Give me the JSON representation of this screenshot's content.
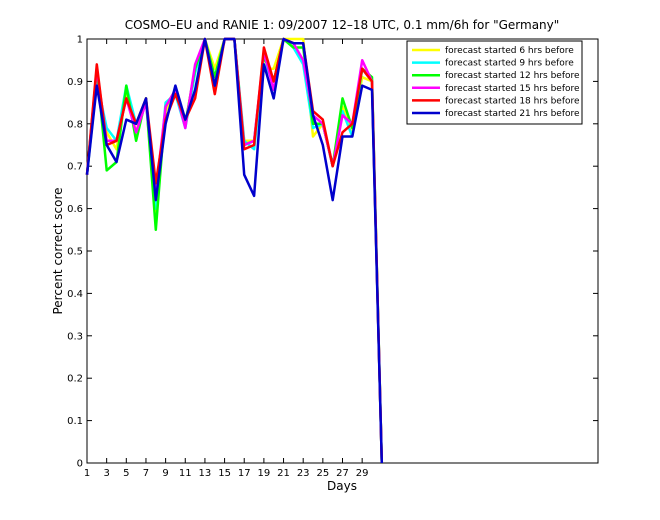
{
  "chart_data": {
    "type": "line",
    "title": "COSMO–EU and RANIE 1: 09/2007 12–18 UTC, 0.1 mm/6h for \"Germany\"",
    "xlabel": "Days",
    "ylabel": "Percent correct score",
    "xlim": [
      1,
      53
    ],
    "ylim": [
      0,
      1
    ],
    "x_ticks": [
      1,
      3,
      5,
      7,
      9,
      11,
      13,
      15,
      17,
      19,
      21,
      23,
      25,
      27,
      29
    ],
    "y_ticks": [
      0,
      0.1,
      0.2,
      0.3,
      0.4,
      0.5,
      0.6,
      0.7,
      0.8,
      0.9,
      1
    ],
    "y_tick_labels": [
      "0",
      "0.1",
      "0.2",
      "0.3",
      "0.4",
      "0.5",
      "0.6",
      "0.7",
      "0.8",
      "0.9",
      "1"
    ],
    "grid": false,
    "legend_position": "top-right",
    "x": [
      1,
      2,
      3,
      4,
      5,
      6,
      7,
      8,
      9,
      10,
      11,
      12,
      13,
      14,
      15,
      16,
      17,
      18,
      19,
      20,
      21,
      22,
      23,
      24,
      25,
      26,
      27,
      28,
      29,
      30,
      31
    ],
    "series": [
      {
        "name": "forecast started 6 hrs before",
        "color": "#ffff00",
        "values": [
          0.68,
          0.91,
          0.78,
          0.74,
          0.87,
          0.78,
          0.86,
          0.58,
          0.83,
          0.87,
          0.8,
          0.93,
          1.0,
          0.93,
          1.0,
          1.0,
          0.76,
          0.76,
          0.93,
          0.93,
          1.0,
          1.0,
          1.0,
          0.77,
          0.8,
          0.7,
          0.84,
          0.78,
          0.91,
          0.9,
          0.0
        ]
      },
      {
        "name": "forecast started 9 hrs before",
        "color": "#00ffff",
        "values": [
          0.68,
          0.9,
          0.79,
          0.76,
          0.89,
          0.8,
          0.85,
          0.6,
          0.85,
          0.87,
          0.79,
          0.92,
          1.0,
          0.91,
          1.0,
          1.0,
          0.76,
          0.74,
          0.94,
          0.9,
          1.0,
          0.98,
          0.94,
          0.79,
          0.8,
          0.7,
          0.83,
          0.77,
          0.93,
          0.9,
          0.0
        ]
      },
      {
        "name": "forecast started 12 hrs before",
        "color": "#00ff00",
        "values": [
          0.68,
          0.93,
          0.69,
          0.71,
          0.89,
          0.76,
          0.86,
          0.55,
          0.84,
          0.88,
          0.8,
          0.93,
          1.0,
          0.91,
          1.0,
          1.0,
          0.75,
          0.76,
          0.96,
          0.9,
          1.0,
          0.98,
          0.98,
          0.8,
          0.8,
          0.7,
          0.86,
          0.79,
          0.93,
          0.91,
          0.0
        ]
      },
      {
        "name": "forecast started 15 hrs before",
        "color": "#ff00ff",
        "values": [
          0.68,
          0.93,
          0.76,
          0.76,
          0.86,
          0.78,
          0.85,
          0.64,
          0.84,
          0.88,
          0.79,
          0.94,
          1.0,
          0.89,
          1.0,
          1.0,
          0.75,
          0.76,
          0.97,
          0.88,
          1.0,
          0.99,
          0.95,
          0.82,
          0.8,
          0.7,
          0.82,
          0.8,
          0.95,
          0.9,
          0.0
        ]
      },
      {
        "name": "forecast started 18 hrs before",
        "color": "#ff0000",
        "values": [
          0.68,
          0.94,
          0.75,
          0.76,
          0.86,
          0.8,
          0.86,
          0.66,
          0.81,
          0.87,
          0.81,
          0.86,
          1.0,
          0.87,
          1.0,
          1.0,
          0.74,
          0.75,
          0.98,
          0.9,
          1.0,
          0.99,
          0.99,
          0.83,
          0.81,
          0.7,
          0.78,
          0.8,
          0.93,
          0.9,
          0.0
        ]
      },
      {
        "name": "forecast started 21 hrs before",
        "color": "#0000cc",
        "values": [
          0.68,
          0.89,
          0.75,
          0.71,
          0.81,
          0.8,
          0.86,
          0.62,
          0.8,
          0.89,
          0.81,
          0.88,
          1.0,
          0.89,
          1.0,
          1.0,
          0.68,
          0.63,
          0.94,
          0.86,
          1.0,
          0.99,
          0.99,
          0.82,
          0.75,
          0.62,
          0.77,
          0.77,
          0.89,
          0.88,
          0.0
        ]
      }
    ]
  }
}
